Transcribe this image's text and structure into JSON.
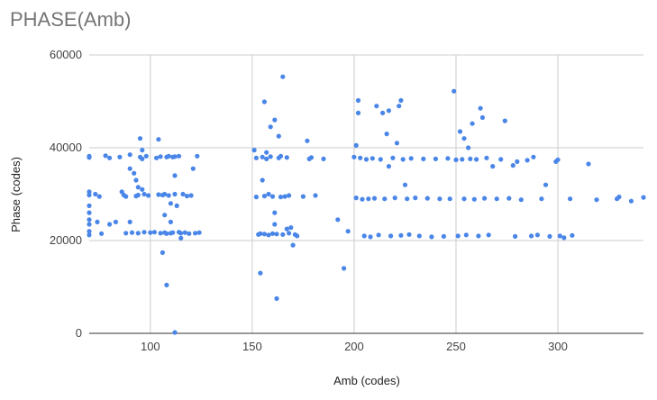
{
  "chart_data": {
    "type": "scatter",
    "title": "PHASE(Amb)",
    "xlabel": "Amb (codes)",
    "ylabel": "Phase (codes)",
    "xlim": [
      70,
      342
    ],
    "ylim": [
      0,
      60000
    ],
    "xticks": [
      100,
      150,
      200,
      250,
      300
    ],
    "yticks": [
      0,
      20000,
      40000,
      60000
    ],
    "xtick_labels": [
      "100",
      "150",
      "200",
      "250",
      "300"
    ],
    "ytick_labels": [
      "0",
      "20000",
      "40000",
      "60000"
    ],
    "grid": true,
    "legend": "none",
    "point_color": "#4a86e8",
    "gridline_color": "#cccccc",
    "axis_color": "#333333",
    "points": [
      [
        70,
        38200
      ],
      [
        70,
        37900
      ],
      [
        70,
        30500
      ],
      [
        70,
        29800
      ],
      [
        70,
        27500
      ],
      [
        70,
        26000
      ],
      [
        70,
        24500
      ],
      [
        70,
        23500
      ],
      [
        70,
        22000
      ],
      [
        70,
        21200
      ],
      [
        73,
        30000
      ],
      [
        75,
        29500
      ],
      [
        74,
        24000
      ],
      [
        76,
        21500
      ],
      [
        78,
        38300
      ],
      [
        80,
        37800
      ],
      [
        80,
        23500
      ],
      [
        83,
        24000
      ],
      [
        85,
        38000
      ],
      [
        86,
        30500
      ],
      [
        87,
        29800
      ],
      [
        88,
        29500
      ],
      [
        88,
        21600
      ],
      [
        90,
        38500
      ],
      [
        90,
        35500
      ],
      [
        90,
        24000
      ],
      [
        91,
        21700
      ],
      [
        92,
        34500
      ],
      [
        93,
        29600
      ],
      [
        93,
        33000
      ],
      [
        94,
        31500
      ],
      [
        94,
        29800
      ],
      [
        94,
        21600
      ],
      [
        95,
        42000
      ],
      [
        95,
        38000
      ],
      [
        96,
        39500
      ],
      [
        96,
        37600
      ],
      [
        96,
        31000
      ],
      [
        97,
        30000
      ],
      [
        97,
        21800
      ],
      [
        98,
        38200
      ],
      [
        99,
        29700
      ],
      [
        100,
        21700
      ],
      [
        102,
        21800
      ],
      [
        103,
        37800
      ],
      [
        104,
        41800
      ],
      [
        104,
        29900
      ],
      [
        105,
        38100
      ],
      [
        105,
        21600
      ],
      [
        106,
        29800
      ],
      [
        106,
        17400
      ],
      [
        107,
        30000
      ],
      [
        107,
        25500
      ],
      [
        107,
        21700
      ],
      [
        108,
        38000
      ],
      [
        108,
        10400
      ],
      [
        108,
        21500
      ],
      [
        109,
        38200
      ],
      [
        109,
        29700
      ],
      [
        110,
        28000
      ],
      [
        110,
        24000
      ],
      [
        110,
        21600
      ],
      [
        111,
        38000
      ],
      [
        111,
        21700
      ],
      [
        112,
        38100
      ],
      [
        112,
        30000
      ],
      [
        112,
        34000
      ],
      [
        112,
        200
      ],
      [
        113,
        27500
      ],
      [
        114,
        38200
      ],
      [
        114,
        21800
      ],
      [
        115,
        21600
      ],
      [
        115,
        20500
      ],
      [
        116,
        30000
      ],
      [
        117,
        21700
      ],
      [
        118,
        29600
      ],
      [
        119,
        21500
      ],
      [
        120,
        29700
      ],
      [
        121,
        35500
      ],
      [
        122,
        21600
      ],
      [
        123,
        38200
      ],
      [
        124,
        21700
      ],
      [
        151,
        39500
      ],
      [
        152,
        37800
      ],
      [
        152,
        29400
      ],
      [
        153,
        21300
      ],
      [
        154,
        21500
      ],
      [
        154,
        13000
      ],
      [
        155,
        33000
      ],
      [
        155,
        38000
      ],
      [
        156,
        49900
      ],
      [
        156,
        29600
      ],
      [
        156,
        21400
      ],
      [
        157,
        37600
      ],
      [
        157,
        39000
      ],
      [
        158,
        30000
      ],
      [
        158,
        21200
      ],
      [
        159,
        38100
      ],
      [
        159,
        44500
      ],
      [
        160,
        29500
      ],
      [
        160,
        21500
      ],
      [
        161,
        46000
      ],
      [
        161,
        26000
      ],
      [
        161,
        23500
      ],
      [
        162,
        7500
      ],
      [
        162,
        21400
      ],
      [
        163,
        42500
      ],
      [
        163,
        37800
      ],
      [
        164,
        29400
      ],
      [
        164,
        38200
      ],
      [
        165,
        55300
      ],
      [
        165,
        21300
      ],
      [
        166,
        29500
      ],
      [
        167,
        37900
      ],
      [
        167,
        22500
      ],
      [
        168,
        21600
      ],
      [
        168,
        29700
      ],
      [
        169,
        22800
      ],
      [
        170,
        19000
      ],
      [
        171,
        21300
      ],
      [
        172,
        21000
      ],
      [
        175,
        29500
      ],
      [
        177,
        41500
      ],
      [
        178,
        37600
      ],
      [
        179,
        37900
      ],
      [
        181,
        29700
      ],
      [
        185,
        37600
      ],
      [
        192,
        24500
      ],
      [
        195,
        14000
      ],
      [
        197,
        22000
      ],
      [
        200,
        38000
      ],
      [
        201,
        29200
      ],
      [
        201,
        40500
      ],
      [
        202,
        50200
      ],
      [
        202,
        47500
      ],
      [
        203,
        37800
      ],
      [
        204,
        28900
      ],
      [
        205,
        21000
      ],
      [
        206,
        37500
      ],
      [
        207,
        29000
      ],
      [
        208,
        20800
      ],
      [
        209,
        37700
      ],
      [
        210,
        29100
      ],
      [
        211,
        49000
      ],
      [
        212,
        21200
      ],
      [
        213,
        37500
      ],
      [
        214,
        47500
      ],
      [
        215,
        29000
      ],
      [
        216,
        43000
      ],
      [
        217,
        48000
      ],
      [
        217,
        36000
      ],
      [
        218,
        21000
      ],
      [
        219,
        37800
      ],
      [
        220,
        29200
      ],
      [
        221,
        41000
      ],
      [
        222,
        49000
      ],
      [
        223,
        50200
      ],
      [
        223,
        21100
      ],
      [
        224,
        37500
      ],
      [
        225,
        32000
      ],
      [
        226,
        29000
      ],
      [
        227,
        21300
      ],
      [
        228,
        37700
      ],
      [
        230,
        29200
      ],
      [
        232,
        21000
      ],
      [
        234,
        37600
      ],
      [
        236,
        29100
      ],
      [
        238,
        20800
      ],
      [
        240,
        37600
      ],
      [
        242,
        29000
      ],
      [
        244,
        20900
      ],
      [
        246,
        37700
      ],
      [
        247,
        29000
      ],
      [
        249,
        52200
      ],
      [
        250,
        37400
      ],
      [
        251,
        21000
      ],
      [
        252,
        43500
      ],
      [
        253,
        37500
      ],
      [
        254,
        42000
      ],
      [
        254,
        29000
      ],
      [
        255,
        21200
      ],
      [
        256,
        40000
      ],
      [
        257,
        37600
      ],
      [
        258,
        45200
      ],
      [
        259,
        28900
      ],
      [
        260,
        37500
      ],
      [
        261,
        21000
      ],
      [
        262,
        48500
      ],
      [
        263,
        46500
      ],
      [
        264,
        29100
      ],
      [
        265,
        37800
      ],
      [
        266,
        21200
      ],
      [
        268,
        36000
      ],
      [
        270,
        29000
      ],
      [
        272,
        37500
      ],
      [
        274,
        45800
      ],
      [
        276,
        29100
      ],
      [
        278,
        36200
      ],
      [
        279,
        20900
      ],
      [
        280,
        37000
      ],
      [
        282,
        28800
      ],
      [
        285,
        37300
      ],
      [
        287,
        21000
      ],
      [
        288,
        38000
      ],
      [
        290,
        21200
      ],
      [
        292,
        29000
      ],
      [
        294,
        32000
      ],
      [
        296,
        20900
      ],
      [
        299,
        37000
      ],
      [
        300,
        37400
      ],
      [
        301,
        21000
      ],
      [
        303,
        20600
      ],
      [
        306,
        29000
      ],
      [
        307,
        21100
      ],
      [
        315,
        36500
      ],
      [
        319,
        28800
      ],
      [
        329,
        29000
      ],
      [
        330,
        29400
      ],
      [
        336,
        28500
      ],
      [
        342,
        29300
      ]
    ]
  }
}
